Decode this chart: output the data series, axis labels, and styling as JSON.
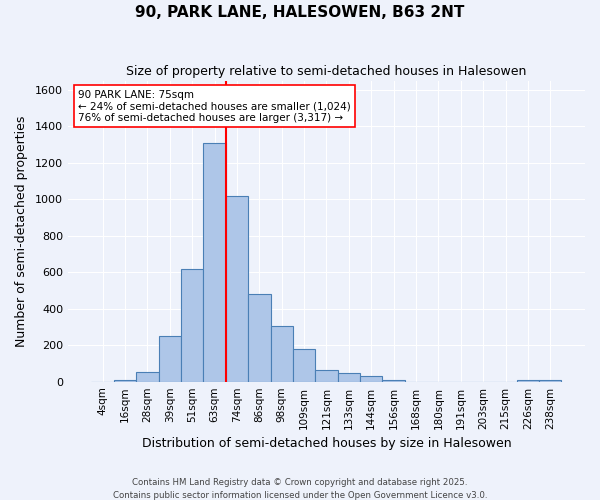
{
  "title": "90, PARK LANE, HALESOWEN, B63 2NT",
  "subtitle": "Size of property relative to semi-detached houses in Halesowen",
  "xlabel": "Distribution of semi-detached houses by size in Halesowen",
  "ylabel": "Number of semi-detached properties",
  "bin_labels": [
    "4sqm",
    "16sqm",
    "28sqm",
    "39sqm",
    "51sqm",
    "63sqm",
    "74sqm",
    "86sqm",
    "98sqm",
    "109sqm",
    "121sqm",
    "133sqm",
    "144sqm",
    "156sqm",
    "168sqm",
    "180sqm",
    "191sqm",
    "203sqm",
    "215sqm",
    "226sqm",
    "238sqm"
  ],
  "bar_values": [
    0,
    10,
    55,
    250,
    620,
    1310,
    1020,
    480,
    305,
    180,
    65,
    50,
    30,
    10,
    0,
    0,
    0,
    0,
    0,
    10,
    10
  ],
  "bar_color": "#aec6e8",
  "bar_edge_color": "#4a7fb5",
  "vline_x_idx": 6,
  "vline_color": "red",
  "ylim": [
    0,
    1650
  ],
  "yticks": [
    0,
    200,
    400,
    600,
    800,
    1000,
    1200,
    1400,
    1600
  ],
  "annotation_title": "90 PARK LANE: 75sqm",
  "annotation_line1": "← 24% of semi-detached houses are smaller (1,024)",
  "annotation_line2": "76% of semi-detached houses are larger (3,317) →",
  "annotation_box_color": "#ffffff",
  "annotation_box_edge": "red",
  "footer1": "Contains HM Land Registry data © Crown copyright and database right 2025.",
  "footer2": "Contains public sector information licensed under the Open Government Licence v3.0.",
  "bg_color": "#eef2fb",
  "grid_color": "#ffffff"
}
